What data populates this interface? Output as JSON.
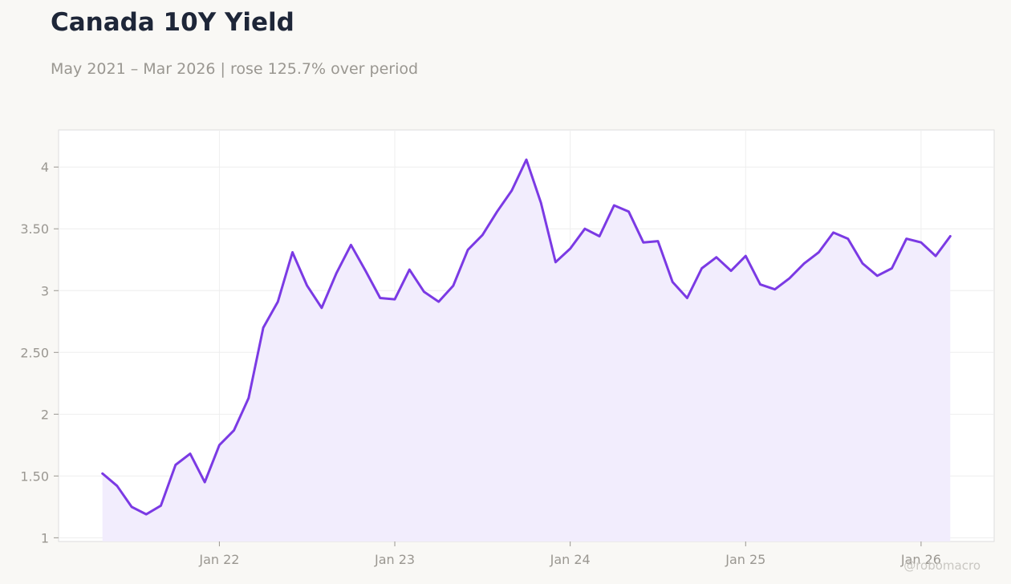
{
  "title": "Canada 10Y Yield",
  "subtitle": "May 2021 – Mar 2026 | rose 125.7% over period",
  "watermark": "@robomacro",
  "colors": {
    "line": "#7b3ae4",
    "fill": "#f2edfd",
    "grid": "#eeeeee",
    "frame": "#dddddd"
  },
  "chart_data": {
    "type": "area",
    "title": "Canada 10Y Yield",
    "subtitle": "May 2021 – Mar 2026 | rose 125.7% over period",
    "xlabel": "",
    "ylabel": "",
    "grid": true,
    "x_tick_labels": [
      "Jan 22",
      "Jan 23",
      "Jan 24",
      "Jan 25",
      "Jan 26"
    ],
    "x_ticks": [
      "2022-01",
      "2023-01",
      "2024-01",
      "2025-01",
      "2026-01"
    ],
    "y_tick_labels": [
      "1",
      "1.50",
      "2",
      "2.50",
      "3",
      "3.50",
      "4"
    ],
    "y_ticks": [
      1,
      1.5,
      2,
      2.5,
      3,
      3.5,
      4
    ],
    "ylim": [
      0.97,
      4.3
    ],
    "xlim": [
      "2021-02",
      "2026-06"
    ],
    "series": [
      {
        "x": [
          "2021-05",
          "2021-06",
          "2021-07",
          "2021-08",
          "2021-09",
          "2021-10",
          "2021-11",
          "2021-12",
          "2022-01",
          "2022-02",
          "2022-03",
          "2022-04",
          "2022-05",
          "2022-06",
          "2022-07",
          "2022-08",
          "2022-09",
          "2022-10",
          "2022-11",
          "2022-12",
          "2023-01",
          "2023-02",
          "2023-03",
          "2023-04",
          "2023-05",
          "2023-06",
          "2023-07",
          "2023-08",
          "2023-09",
          "2023-10",
          "2023-11",
          "2023-12",
          "2024-01",
          "2024-02",
          "2024-03",
          "2024-04",
          "2024-05",
          "2024-06",
          "2024-07",
          "2024-08",
          "2024-09",
          "2024-10",
          "2024-11",
          "2024-12",
          "2025-01",
          "2025-02",
          "2025-03",
          "2025-04",
          "2025-05",
          "2025-06",
          "2025-07",
          "2025-08",
          "2025-09",
          "2025-10",
          "2025-11",
          "2025-12",
          "2026-01",
          "2026-02",
          "2026-03"
        ],
        "values": [
          1.52,
          1.42,
          1.25,
          1.19,
          1.26,
          1.59,
          1.68,
          1.45,
          1.75,
          1.87,
          2.13,
          2.7,
          2.91,
          3.31,
          3.04,
          2.86,
          3.14,
          3.37,
          3.16,
          2.94,
          2.93,
          3.17,
          2.99,
          2.91,
          3.04,
          3.33,
          3.45,
          3.64,
          3.81,
          4.06,
          3.71,
          3.23,
          3.34,
          3.5,
          3.44,
          3.69,
          3.64,
          3.39,
          3.4,
          3.07,
          2.94,
          3.18,
          3.27,
          3.16,
          3.28,
          3.05,
          3.01,
          3.1,
          3.22,
          3.31,
          3.47,
          3.42,
          3.22,
          3.12,
          3.18,
          3.42,
          3.39,
          3.28,
          3.44
        ]
      }
    ]
  }
}
